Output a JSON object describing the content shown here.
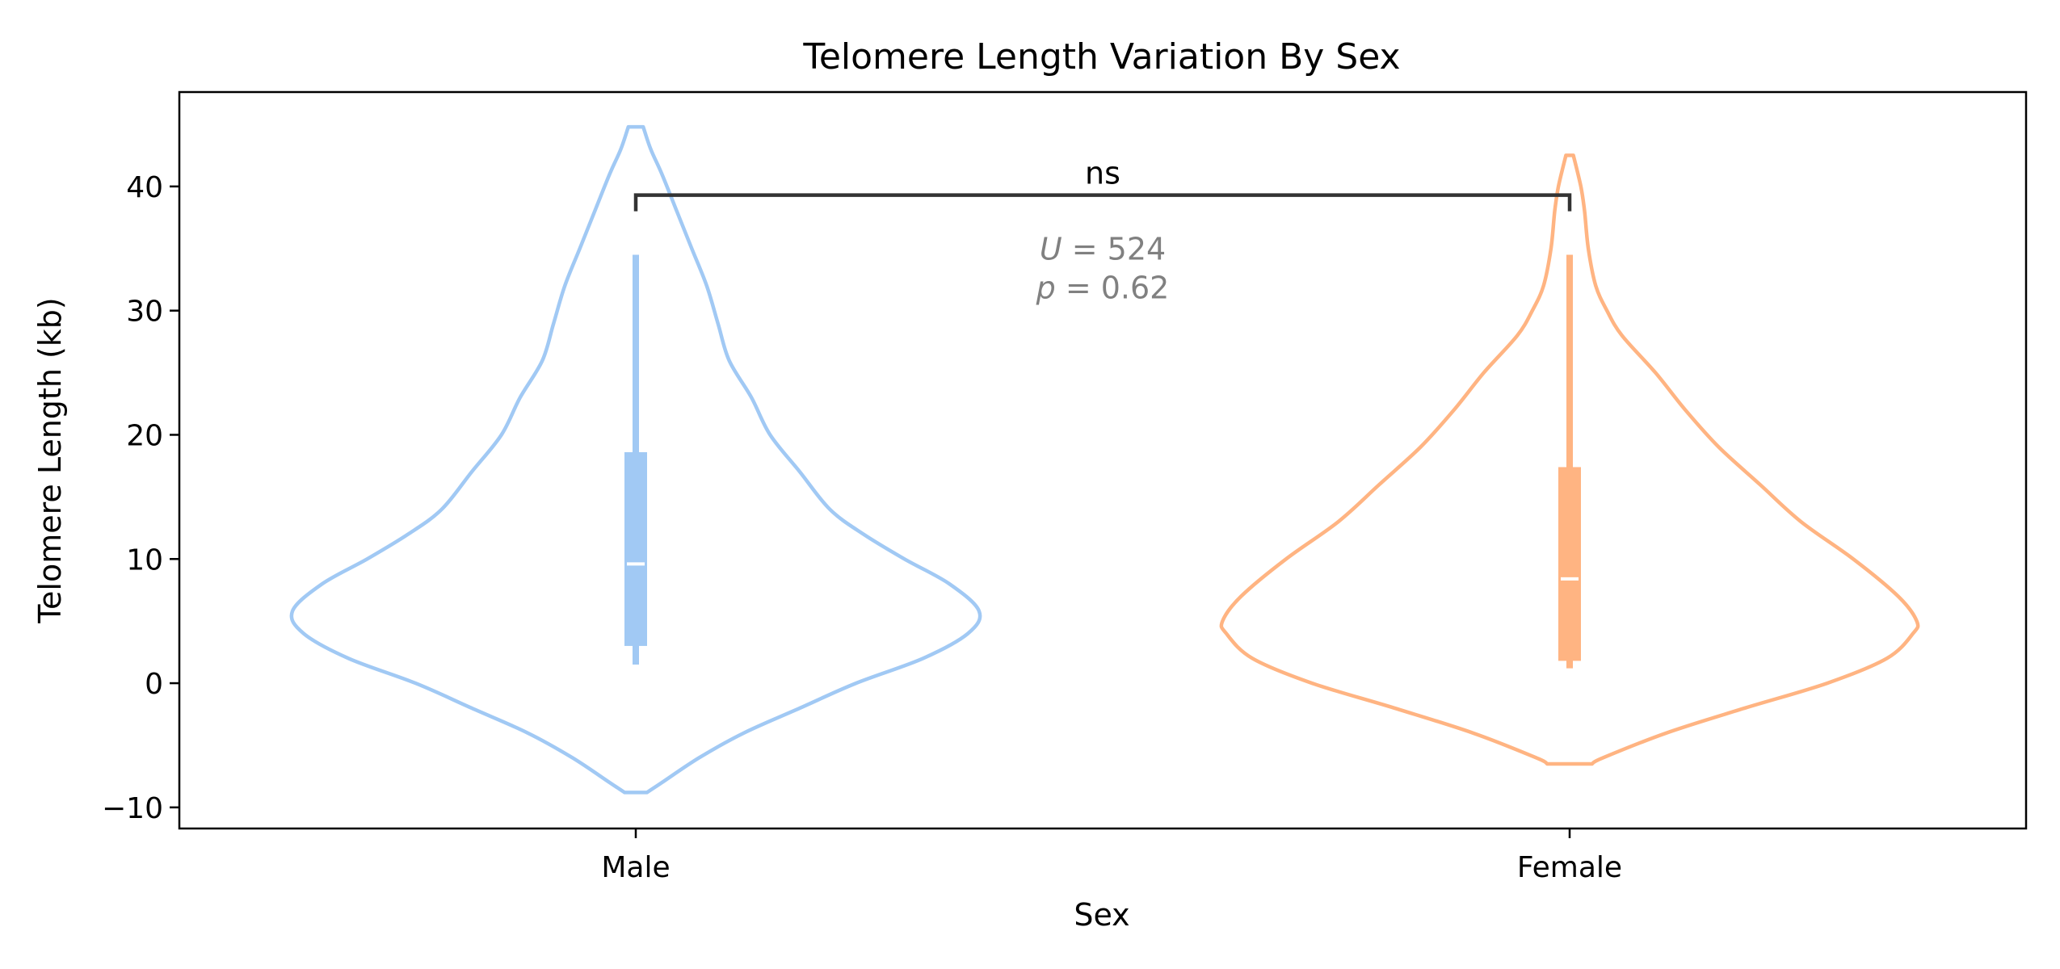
{
  "chart_data": {
    "type": "violin",
    "title": "Telomere Length Variation By Sex",
    "xlabel": "Sex",
    "ylabel": "Telomere Length (kb)",
    "ylim": [
      -11.7,
      47.6
    ],
    "yticks": [
      -10,
      0,
      10,
      20,
      30,
      40
    ],
    "ytick_labels": [
      "−10",
      "0",
      "10",
      "20",
      "30",
      "40"
    ],
    "categories": [
      "Male",
      "Female"
    ],
    "grid": false,
    "series": [
      {
        "name": "Male",
        "color": "#a1c9f4",
        "violin_min": -8.8,
        "violin_max": 44.8,
        "whisker_low": 1.5,
        "whisker_high": 34.5,
        "q1": 3.0,
        "median": 9.6,
        "q3": 18.6,
        "density": [
          [
            -8.8,
            0.03
          ],
          [
            -8.0,
            0.07
          ],
          [
            -6.0,
            0.17
          ],
          [
            -4.0,
            0.29
          ],
          [
            -2.0,
            0.44
          ],
          [
            0.0,
            0.59
          ],
          [
            2.0,
            0.77
          ],
          [
            4.0,
            0.89
          ],
          [
            5.8,
            0.92
          ],
          [
            8.0,
            0.84
          ],
          [
            10.0,
            0.72
          ],
          [
            12.0,
            0.61
          ],
          [
            14.0,
            0.52
          ],
          [
            17.0,
            0.44
          ],
          [
            20.0,
            0.36
          ],
          [
            23.0,
            0.31
          ],
          [
            26.0,
            0.25
          ],
          [
            29.0,
            0.22
          ],
          [
            32.0,
            0.19
          ],
          [
            35.0,
            0.15
          ],
          [
            38.0,
            0.11
          ],
          [
            41.0,
            0.07
          ],
          [
            43.0,
            0.04
          ],
          [
            44.8,
            0.02
          ]
        ]
      },
      {
        "name": "Female",
        "color": "#ffb482",
        "violin_min": -6.5,
        "violin_max": 42.5,
        "whisker_low": 1.2,
        "whisker_high": 34.5,
        "q1": 1.8,
        "median": 8.4,
        "q3": 17.4,
        "density": [
          [
            -6.5,
            0.06
          ],
          [
            -6.0,
            0.09
          ],
          [
            -4.0,
            0.26
          ],
          [
            -2.0,
            0.47
          ],
          [
            0.0,
            0.69
          ],
          [
            2.0,
            0.85
          ],
          [
            4.0,
            0.92
          ],
          [
            5.0,
            0.93
          ],
          [
            7.0,
            0.88
          ],
          [
            10.0,
            0.76
          ],
          [
            13.0,
            0.62
          ],
          [
            16.0,
            0.51
          ],
          [
            19.0,
            0.4
          ],
          [
            22.0,
            0.31
          ],
          [
            25.0,
            0.23
          ],
          [
            28.0,
            0.14
          ],
          [
            30.0,
            0.1
          ],
          [
            32.0,
            0.07
          ],
          [
            35.0,
            0.05
          ],
          [
            38.0,
            0.04
          ],
          [
            40.0,
            0.03
          ],
          [
            42.5,
            0.01
          ]
        ]
      }
    ],
    "annotation": {
      "label": "ns",
      "bracket_y": 39.3,
      "bracket_drop": 1.3,
      "stat_line1_var": "U",
      "stat_line1_val": "= 524",
      "stat_line2_var": "p",
      "stat_line2_val": "= 0.62"
    }
  }
}
